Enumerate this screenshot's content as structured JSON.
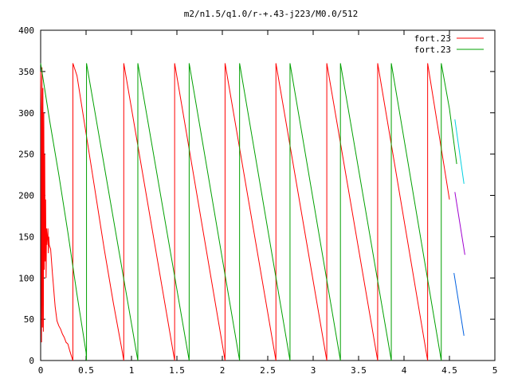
{
  "chart_data": {
    "type": "line",
    "title": "m2/n1.5/q1.0/r-+.43-j223/M0.0/512",
    "xlabel": "",
    "ylabel": "",
    "xlim": [
      0,
      5
    ],
    "ylim": [
      0,
      400
    ],
    "xticks": [
      0,
      0.5,
      1,
      1.5,
      2,
      2.5,
      3,
      3.5,
      4,
      4.5,
      5
    ],
    "xtick_labels": [
      "0",
      "0.5",
      "1",
      "1.5",
      "2",
      "2.5",
      "3",
      "3.5",
      "4",
      "4.5",
      "5"
    ],
    "yticks": [
      0,
      50,
      100,
      150,
      200,
      250,
      300,
      350,
      400
    ],
    "ytick_labels": [
      "0",
      "50",
      "100",
      "150",
      "200",
      "250",
      "300",
      "350",
      "400"
    ],
    "grid": false,
    "legend_position": "top-right",
    "series": [
      {
        "name": "fort.23",
        "color": "#ff0000",
        "style": "line",
        "x": [
          0.0,
          0.005,
          0.01,
          0.015,
          0.02,
          0.025,
          0.03,
          0.035,
          0.04,
          0.045,
          0.05,
          0.055,
          0.06,
          0.065,
          0.07,
          0.075,
          0.08,
          0.085,
          0.09,
          0.095,
          0.1,
          0.11,
          0.12,
          0.13,
          0.14,
          0.15,
          0.16,
          0.18,
          0.2,
          0.22,
          0.24,
          0.26,
          0.28,
          0.3,
          0.32,
          0.34,
          0.355,
          null,
          0.355,
          0.355,
          0.4,
          0.5,
          0.6,
          0.7,
          0.8,
          0.9,
          0.915,
          null,
          0.915,
          0.915,
          1.475,
          null,
          1.475,
          1.475,
          2.03,
          null,
          2.03,
          2.03,
          2.59,
          null,
          2.59,
          2.59,
          3.15,
          null,
          3.15,
          3.15,
          3.71,
          null,
          3.71,
          3.71,
          4.26,
          null,
          4.26,
          4.26,
          4.5
        ],
        "y": [
          350,
          300,
          22,
          355,
          40,
          330,
          35,
          300,
          110,
          250,
          120,
          195,
          100,
          160,
          140,
          150,
          160,
          130,
          150,
          140,
          138,
          135,
          120,
          105,
          92,
          78,
          65,
          48,
          42,
          38,
          32,
          28,
          22,
          20,
          12,
          5,
          0,
          null,
          0,
          360,
          345,
          275,
          205,
          135,
          70,
          10,
          0,
          null,
          0,
          360,
          0,
          null,
          0,
          360,
          0,
          null,
          0,
          360,
          0,
          null,
          0,
          360,
          0,
          null,
          0,
          360,
          0,
          null,
          0,
          360,
          0,
          null,
          0,
          360,
          195
        ]
      },
      {
        "name": "fort.23",
        "color": "#00a000",
        "style": "line",
        "x": [
          0.0,
          0.1,
          0.2,
          0.3,
          0.4,
          0.5,
          0.505,
          null,
          0.505,
          0.505,
          1.07,
          null,
          1.07,
          1.07,
          1.635,
          null,
          1.635,
          1.635,
          2.19,
          null,
          2.19,
          2.19,
          2.745,
          null,
          2.745,
          2.745,
          3.3,
          null,
          3.3,
          3.3,
          3.86,
          null,
          3.86,
          3.86,
          4.41,
          null,
          4.41,
          4.41,
          4.5,
          4.58
        ],
        "y": [
          360,
          290,
          225,
          155,
          80,
          10,
          0,
          null,
          0,
          360,
          0,
          null,
          0,
          360,
          0,
          null,
          0,
          360,
          0,
          null,
          0,
          360,
          0,
          null,
          0,
          360,
          0,
          null,
          0,
          360,
          0,
          null,
          0,
          360,
          0,
          null,
          0,
          360,
          305,
          238
        ]
      },
      {
        "color": "#00d0e0",
        "style": "line",
        "x": [
          4.56,
          4.66
        ],
        "y": [
          292,
          214
        ]
      },
      {
        "color": "#a000d0",
        "style": "line",
        "x": [
          4.56,
          4.67
        ],
        "y": [
          204,
          128
        ]
      },
      {
        "color": "#0060e0",
        "style": "line",
        "x": [
          4.55,
          4.66
        ],
        "y": [
          106,
          30
        ]
      }
    ]
  },
  "legend": [
    {
      "label": "fort.23",
      "color": "#ff0000"
    },
    {
      "label": "fort.23",
      "color": "#00a000"
    }
  ]
}
